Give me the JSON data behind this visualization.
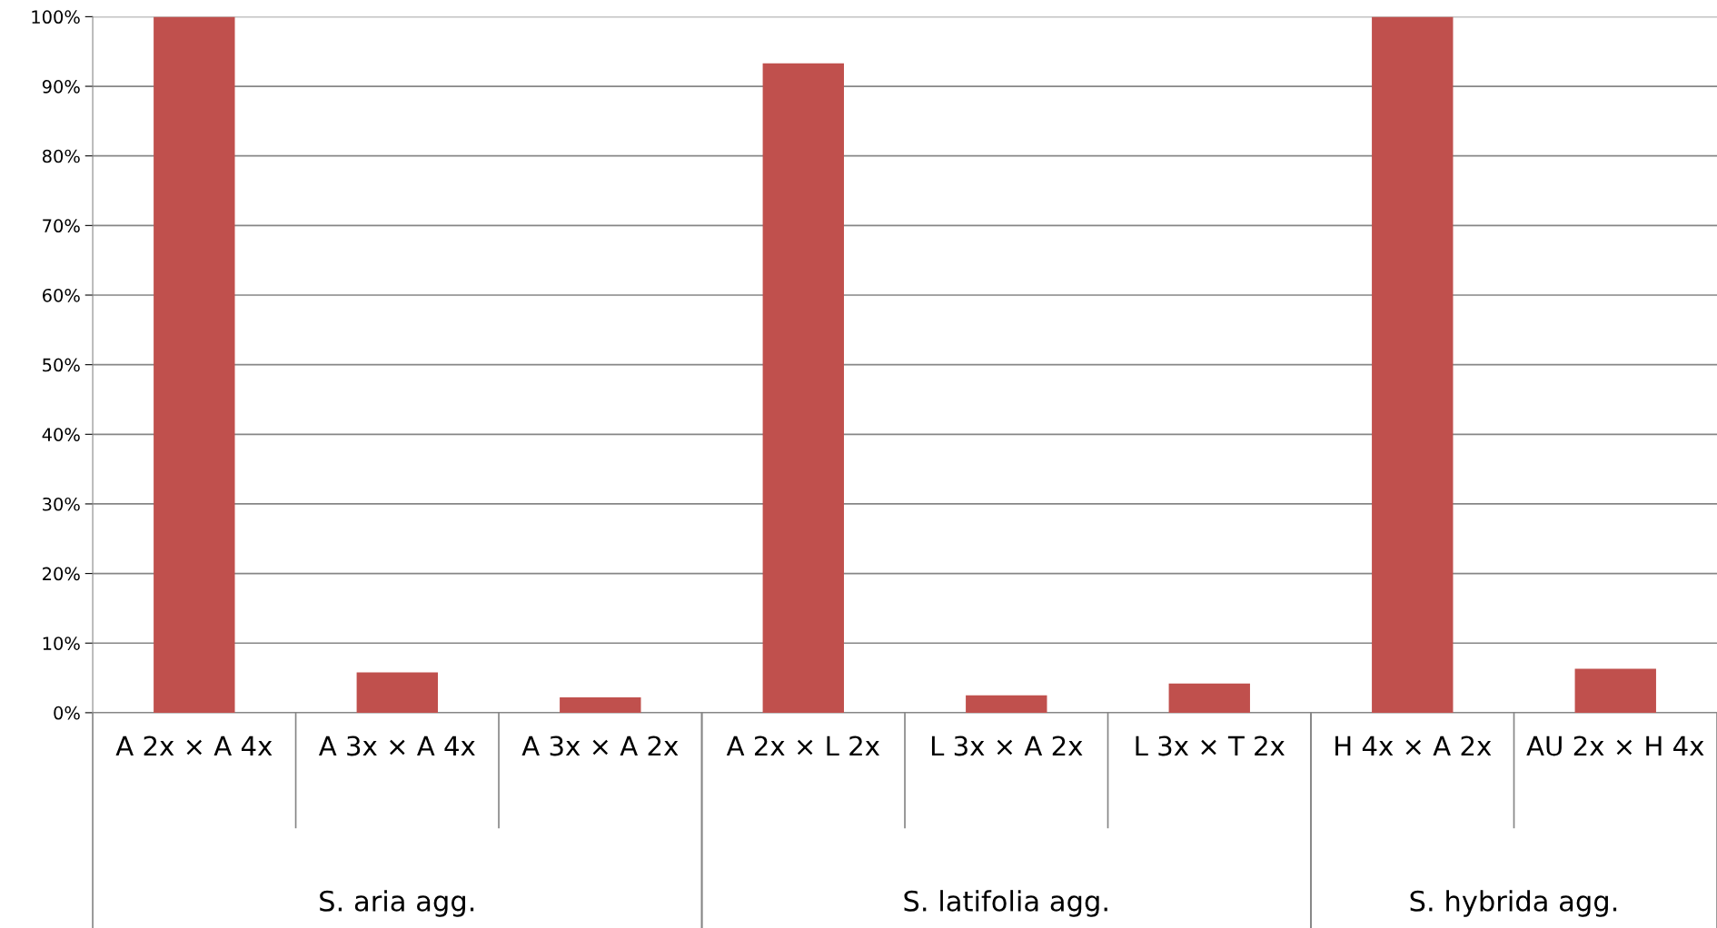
{
  "chart_data": {
    "type": "bar",
    "categories": [
      "A 2x × A 4x",
      "A 3x × A 4x",
      "A 3x × A 2x",
      "A 2x × L 2x",
      "L 3x × A 2x",
      "L 3x × T 2x",
      "H 4x × A 2x",
      "AU 2x × H 4x"
    ],
    "values": [
      100,
      5.8,
      2.2,
      93.3,
      2.5,
      4.2,
      100,
      6.3
    ],
    "color": "#c0504d",
    "ylim": [
      0,
      100
    ],
    "yticks": [
      {
        "value": 0,
        "label": "0%"
      },
      {
        "value": 10,
        "label": "10%"
      },
      {
        "value": 20,
        "label": "20%"
      },
      {
        "value": 30,
        "label": "30%"
      },
      {
        "value": 40,
        "label": "40%"
      },
      {
        "value": 50,
        "label": "50%"
      },
      {
        "value": 60,
        "label": "60%"
      },
      {
        "value": 70,
        "label": "70%"
      },
      {
        "value": 80,
        "label": "80%"
      },
      {
        "value": 90,
        "label": "90%"
      },
      {
        "value": 100,
        "label": "100%"
      }
    ],
    "grid": "y",
    "annotations": [
      "S. aria agg.",
      "S. latifolia agg.",
      "S. hybrida agg."
    ]
  }
}
